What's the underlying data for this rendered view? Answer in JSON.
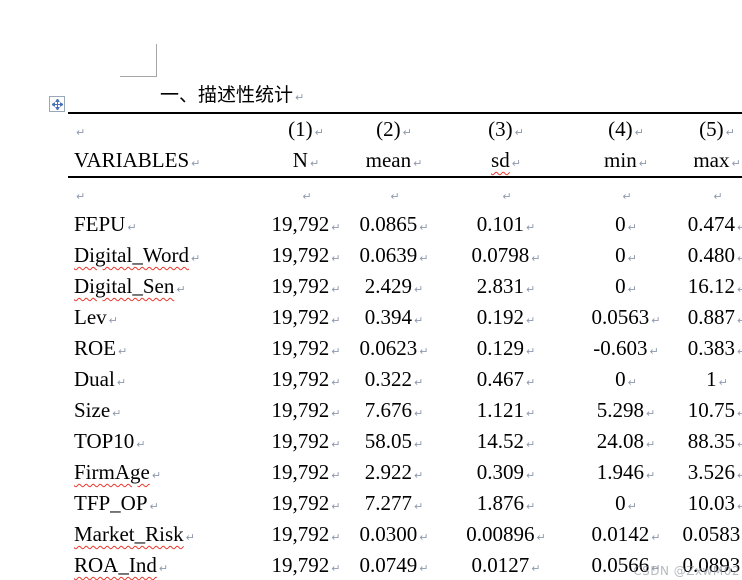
{
  "document": {
    "section_title": "一、描述性统计",
    "watermark_text": "CSDN @ZxwM02"
  },
  "marks": {
    "end_of_paragraph": "↵",
    "end_of_cell": "↵"
  },
  "colors": {
    "spellcheck_underline": "#e8372c",
    "formatting_mark": "#8e99ad",
    "table_rule": "#000000",
    "crop_mark": "#a6a6a6",
    "move_handle_arrow": "#4a70b8"
  },
  "icons": {
    "move_handle": "four-direction-move-arrows"
  },
  "table": {
    "header_numbers": [
      "",
      "(1)",
      "(2)",
      "(3)",
      "(4)",
      "(5)"
    ],
    "header_labels": [
      "VARIABLES",
      "N",
      "mean",
      "sd",
      "min",
      "max"
    ],
    "header_flagged_labels": [
      "sd"
    ],
    "rows": [
      {
        "variable": "FEPU",
        "flagged": false,
        "n": "19,792",
        "mean": "0.0865",
        "sd": "0.101",
        "min": "0",
        "max": "0.474"
      },
      {
        "variable": "Digital_Word",
        "flagged": true,
        "n": "19,792",
        "mean": "0.0639",
        "sd": "0.0798",
        "min": "0",
        "max": "0.480"
      },
      {
        "variable": "Digital_Sen",
        "flagged": true,
        "n": "19,792",
        "mean": "2.429",
        "sd": "2.831",
        "min": "0",
        "max": "16.12"
      },
      {
        "variable": "Lev",
        "flagged": false,
        "n": "19,792",
        "mean": "0.394",
        "sd": "0.192",
        "min": "0.0563",
        "max": "0.887"
      },
      {
        "variable": "ROE",
        "flagged": false,
        "n": "19,792",
        "mean": "0.0623",
        "sd": "0.129",
        "min": "-0.603",
        "max": "0.383"
      },
      {
        "variable": "Dual",
        "flagged": false,
        "n": "19,792",
        "mean": "0.322",
        "sd": "0.467",
        "min": "0",
        "max": "1"
      },
      {
        "variable": "Size",
        "flagged": false,
        "n": "19,792",
        "mean": "7.676",
        "sd": "1.121",
        "min": "5.298",
        "max": "10.75"
      },
      {
        "variable": "TOP10",
        "flagged": false,
        "n": "19,792",
        "mean": "58.05",
        "sd": "14.52",
        "min": "24.08",
        "max": "88.35"
      },
      {
        "variable": "FirmAge",
        "flagged": true,
        "n": "19,792",
        "mean": "2.922",
        "sd": "0.309",
        "min": "1.946",
        "max": "3.526"
      },
      {
        "variable": "TFP_OP",
        "flagged": false,
        "n": "19,792",
        "mean": "7.277",
        "sd": "1.876",
        "min": "0",
        "max": "10.03"
      },
      {
        "variable": "Market_Risk",
        "flagged": true,
        "n": "19,792",
        "mean": "0.0300",
        "sd": "0.00896",
        "min": "0.0142",
        "max": "0.0583"
      },
      {
        "variable": "ROA_Ind",
        "flagged": true,
        "n": "19,792",
        "mean": "0.0749",
        "sd": "0.0127",
        "min": "0.0566",
        "max": "0.0893"
      }
    ]
  }
}
